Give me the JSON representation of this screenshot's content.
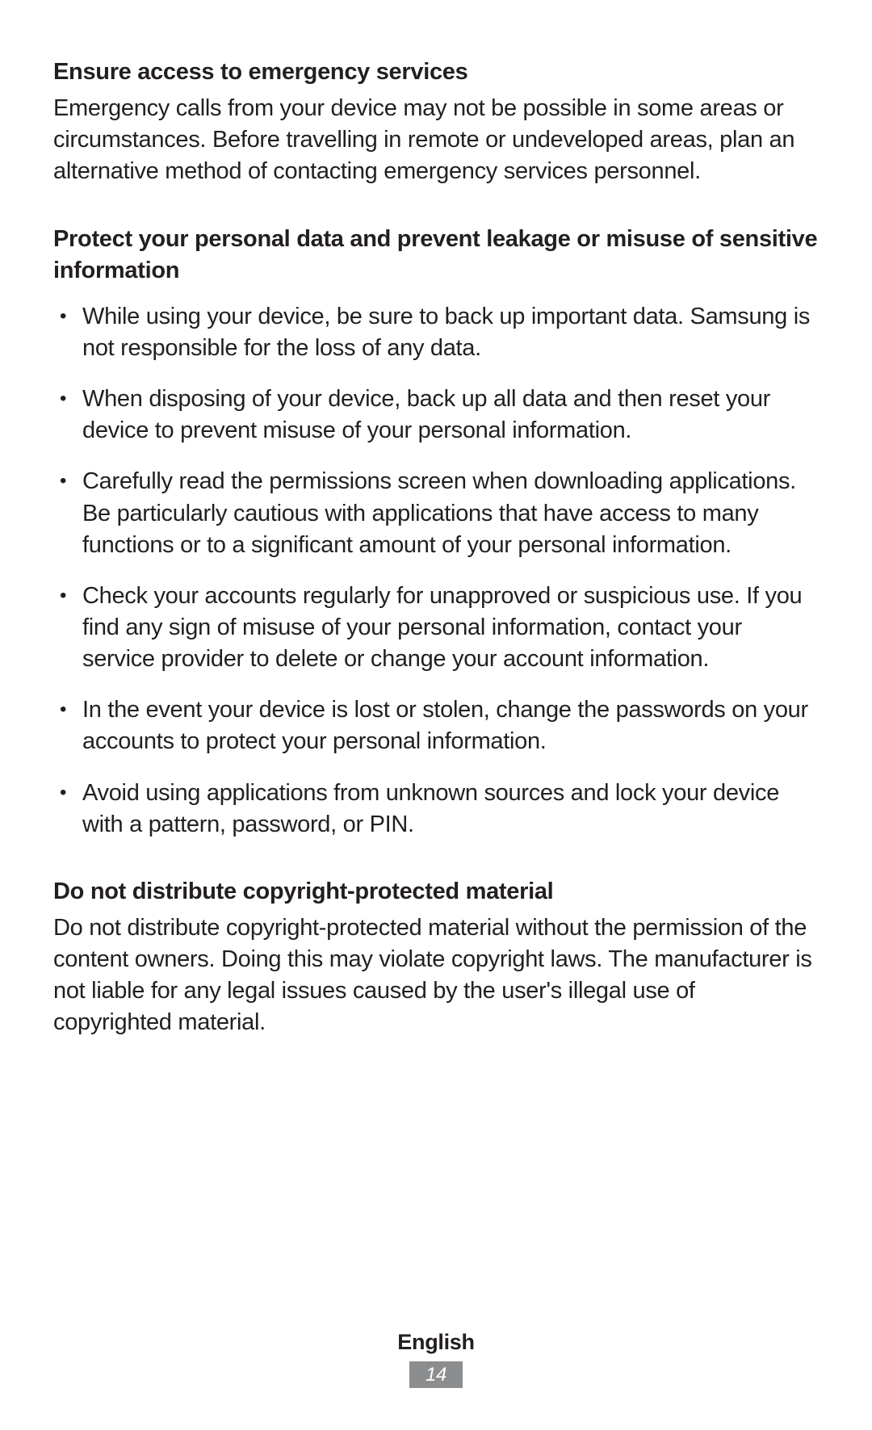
{
  "colors": {
    "text": "#231f20",
    "background": "#ffffff",
    "page_badge_bg": "#8c8d8f",
    "page_badge_text": "#ffffff"
  },
  "typography": {
    "body_fontsize_pt": 22,
    "heading_weight": 700,
    "body_weight": 400,
    "line_height": 1.35
  },
  "sections": [
    {
      "heading": "Ensure access to emergency services",
      "paragraph": "Emergency calls from your device may not be possible in some areas or circumstances. Before travelling in remote or undeveloped areas, plan an alternative method of contacting emergency services personnel."
    },
    {
      "heading": "Protect your personal data and prevent leakage or misuse of sensitive information",
      "bullets": [
        "While using your device, be sure to back up important data. Samsung is not responsible for the loss of any data.",
        "When disposing of your device, back up all data and then reset your device to prevent misuse of your personal information.",
        "Carefully read the permissions screen when downloading applications. Be particularly cautious with applications that have access to many functions or to a significant amount of your personal information.",
        "Check your accounts regularly for unapproved or suspicious use. If you find any sign of misuse of your personal information, contact your service provider to delete or change your account information.",
        "In the event your device is lost or stolen, change the passwords on your accounts to protect your personal information.",
        "Avoid using applications from unknown sources and lock your device with a pattern, password, or PIN."
      ]
    },
    {
      "heading": "Do not distribute copyright-protected material",
      "paragraph": "Do not distribute copyright-protected material without the permission of the content owners. Doing this may violate copyright laws. The manufacturer is not liable for any legal issues caused by the user's illegal use of copyrighted material."
    }
  ],
  "footer": {
    "language": "English",
    "page_number": "14"
  }
}
